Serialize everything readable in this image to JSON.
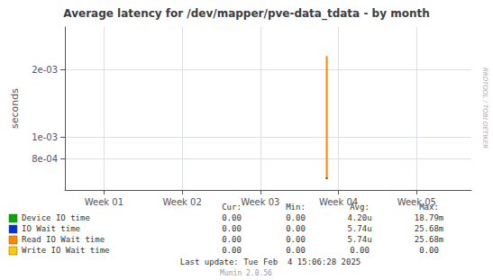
{
  "chart_data": {
    "type": "line",
    "title": "Average latency for /dev/mapper/pve-data_tdata - by month",
    "ylabel": "seconds",
    "log": "y",
    "grid": true,
    "xlim": [
      0.0,
      5.2
    ],
    "xticks": [
      {
        "value": 0.5,
        "label": "Week 01"
      },
      {
        "value": 1.5,
        "label": "Week 02"
      },
      {
        "value": 2.5,
        "label": "Week 03"
      },
      {
        "value": 3.5,
        "label": "Week 04"
      },
      {
        "value": 4.5,
        "label": "Week 05"
      }
    ],
    "ylim": [
      0.00058,
      0.0031
    ],
    "yticks": [
      {
        "value": 0.0008,
        "label": "8e-04"
      },
      {
        "value": 0.001,
        "label": "1e-03"
      },
      {
        "value": 0.002,
        "label": "2e-03"
      }
    ],
    "series": [
      {
        "name": "Read IO Wait time",
        "color": "#ff8800",
        "x": [
          3.35,
          3.35
        ],
        "values": [
          0.00065,
          0.0023
        ]
      },
      {
        "color": "#224400",
        "x": [
          3.35,
          3.35
        ],
        "values": [
          0.00065,
          0.00066
        ]
      }
    ],
    "legend_table": {
      "columns": [
        "Cur:",
        "Min:",
        "Avg:",
        "Max:"
      ],
      "rows": [
        {
          "label": "Device IO time",
          "color": "#00aa00",
          "values": [
            "0.00",
            "0.00",
            "4.20u",
            "18.79m"
          ]
        },
        {
          "label": "IO Wait time",
          "color": "#0033cc",
          "values": [
            "0.00",
            "0.00",
            "5.74u",
            "25.68m"
          ]
        },
        {
          "label": "Read IO Wait time",
          "color": "#ff8800",
          "values": [
            "0.00",
            "0.00",
            "5.74u",
            "25.68m"
          ]
        },
        {
          "label": "Write IO Wait time",
          "color": "#ffcc00",
          "values": [
            "0.00",
            "0.00",
            "0.00",
            "0.00"
          ]
        }
      ]
    },
    "annotations": [
      "Last update: Tue Feb  4 15:06:28 2025",
      "Munin 2.0.56",
      "RRDTOOL / TOBI OETIKER"
    ]
  }
}
